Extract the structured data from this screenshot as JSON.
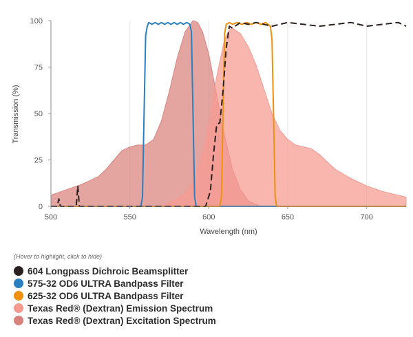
{
  "chart_data": {
    "type": "area",
    "xlabel": "Wavelength (nm)",
    "ylabel": "Transmission (%)",
    "xlim": [
      500,
      725
    ],
    "ylim": [
      0,
      100
    ],
    "xticks": [
      500,
      550,
      600,
      650,
      700
    ],
    "yticks": [
      0,
      25,
      50,
      75,
      100
    ],
    "grid": "vertical",
    "legend_position": "bottom-left",
    "series": [
      {
        "name": "Texas Red® (Dextran) Excitation Spectrum",
        "kind": "area",
        "color": "#d9827d",
        "x": [
          500,
          510,
          520,
          530,
          535,
          540,
          545,
          550,
          555,
          560,
          565,
          570,
          575,
          580,
          585,
          590,
          593,
          596,
          600,
          605,
          610,
          615,
          620,
          625,
          630,
          633
        ],
        "y": [
          6,
          9,
          12,
          16,
          20,
          25,
          30,
          32,
          33,
          33,
          36,
          46,
          62,
          80,
          94,
          100,
          99,
          94,
          82,
          60,
          38,
          20,
          9,
          3,
          1,
          0
        ]
      },
      {
        "name": "Texas Red® (Dextran) Emission Spectrum",
        "kind": "area",
        "color": "#f69a90",
        "x": [
          570,
          575,
          580,
          585,
          590,
          595,
          600,
          605,
          610,
          613,
          615,
          620,
          625,
          630,
          635,
          640,
          645,
          650,
          655,
          660,
          665,
          670,
          675,
          680,
          690,
          700,
          710,
          720,
          725
        ],
        "y": [
          0,
          2,
          4,
          7,
          13,
          25,
          44,
          70,
          90,
          95,
          96,
          93,
          86,
          76,
          63,
          50,
          41,
          36,
          33,
          32,
          31,
          28,
          24,
          20,
          15,
          11,
          8,
          6,
          5
        ]
      },
      {
        "name": "575-32 OD6 ULTRA Bandpass Filter",
        "kind": "line",
        "color": "#2a7fc0",
        "x": [
          500,
          557,
          558,
          559,
          560,
          561,
          562,
          564,
          566,
          568,
          570,
          572,
          574,
          576,
          578,
          580,
          582,
          584,
          586,
          588,
          589,
          590,
          591,
          592,
          725
        ],
        "y": [
          0,
          0,
          5,
          50,
          92,
          97,
          99,
          98,
          99,
          98,
          99,
          98,
          99,
          98,
          99,
          98,
          99,
          98,
          99,
          98,
          94,
          50,
          5,
          0,
          0
        ]
      },
      {
        "name": "625-32 OD6 ULTRA Bandpass Filter",
        "kind": "line",
        "color": "#f0900e",
        "x": [
          500,
          607,
          608,
          609,
          610,
          611,
          613,
          615,
          618,
          621,
          624,
          627,
          630,
          633,
          636,
          639,
          640,
          641,
          642,
          643,
          725
        ],
        "y": [
          0,
          0,
          5,
          50,
          93,
          98,
          99,
          98,
          99,
          98,
          99,
          98,
          99,
          98,
          99,
          97,
          90,
          50,
          5,
          0,
          0
        ]
      },
      {
        "name": "604 Longpass Dichroic Beamsplitter",
        "kind": "dashed",
        "color": "#2a2020",
        "x": [
          500,
          504,
          505,
          506,
          510,
          516,
          517,
          518,
          525,
          545,
          560,
          580,
          590,
          598,
          601,
          603,
          605,
          607,
          609,
          611,
          613,
          615,
          620,
          625,
          630,
          640,
          650,
          660,
          670,
          680,
          690,
          700,
          710,
          720,
          725
        ],
        "y": [
          0,
          0,
          4,
          0,
          0,
          0,
          11,
          0,
          0,
          0,
          0,
          0,
          0,
          0,
          8,
          28,
          44,
          45,
          62,
          85,
          97,
          96,
          99,
          98,
          99,
          97,
          99,
          98,
          97,
          98,
          99,
          97,
          98,
          99,
          97
        ]
      }
    ]
  },
  "legend": {
    "hint": "(Hover to highlight, click to hide)",
    "items": [
      {
        "label": "604 Longpass Dichroic Beamsplitter",
        "color": "#2a2020"
      },
      {
        "label": "575-32 OD6 ULTRA Bandpass Filter",
        "color": "#2a7fc0"
      },
      {
        "label": "625-32 OD6 ULTRA Bandpass Filter",
        "color": "#f0900e"
      },
      {
        "label": "Texas Red® (Dextran) Emission Spectrum",
        "color": "#f69a90"
      },
      {
        "label": "Texas Red® (Dextran) Excitation Spectrum",
        "color": "#d9827d"
      }
    ]
  }
}
